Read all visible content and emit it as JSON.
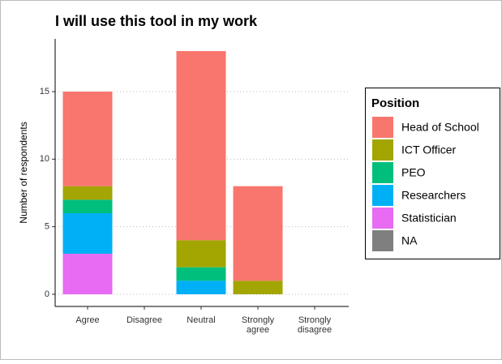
{
  "chart_data": {
    "type": "stacked_bar",
    "title": "I will use this tool in my work",
    "y_label": "Number of respondents",
    "categories": [
      "Agree",
      "Disagree",
      "Neutral",
      "Strongly\nagree",
      "Strongly\ndisagree"
    ],
    "legend_title": "Position",
    "legend_position": "right",
    "series": [
      {
        "name": "Head of School",
        "color": "#F8766D",
        "values": [
          7,
          0,
          14,
          7,
          0
        ]
      },
      {
        "name": "ICT Officer",
        "color": "#A3A500",
        "values": [
          1,
          0,
          2,
          1,
          0
        ]
      },
      {
        "name": "PEO",
        "color": "#00BF7D",
        "values": [
          1,
          0,
          1,
          0,
          0
        ]
      },
      {
        "name": "Researchers",
        "color": "#00B0F6",
        "values": [
          3,
          0,
          1,
          0,
          0
        ]
      },
      {
        "name": "Statistician",
        "color": "#E76BF3",
        "values": [
          3,
          0,
          0,
          0,
          0
        ]
      },
      {
        "name": "NA",
        "color": "#7F7F7F",
        "values": [
          0,
          0,
          0,
          0,
          0
        ]
      }
    ],
    "ylim": [
      -0.9,
      18.9
    ],
    "yticks": [
      0,
      5,
      10,
      15
    ],
    "grid": true
  }
}
